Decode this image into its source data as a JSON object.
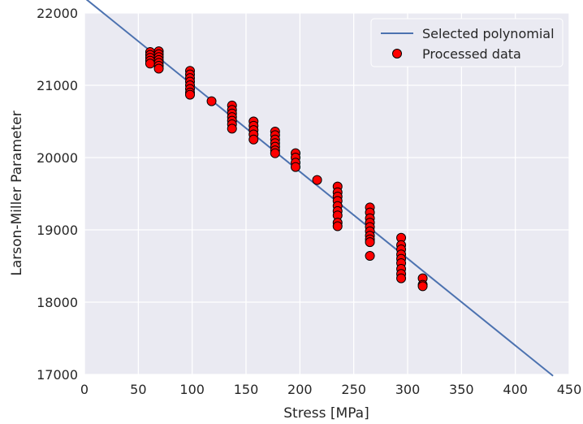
{
  "chart_data": {
    "type": "scatter",
    "title": "",
    "xlabel": "Stress [MPa]",
    "ylabel": "Larson-Miller Parameter",
    "xlim": [
      0,
      450
    ],
    "ylim": [
      17000,
      22000
    ],
    "xticks": [
      "0",
      "50",
      "100",
      "150",
      "200",
      "250",
      "300",
      "350",
      "400",
      "450"
    ],
    "yticks": [
      "17000",
      "18000",
      "19000",
      "20000",
      "21000",
      "22000"
    ],
    "grid": true,
    "legend": "top-right",
    "colors": {
      "background": "#eaeaf2",
      "grid": "#ffffff",
      "line": "#4c72b0",
      "marker_fill": "#ff0000",
      "marker_edge": "#000000"
    },
    "series": [
      {
        "name": "Selected polynomial",
        "kind": "line",
        "x": [
          0,
          435
        ],
        "y": [
          22210,
          16980
        ]
      },
      {
        "name": "Processed data",
        "kind": "scatter",
        "points": [
          [
            61,
            21460
          ],
          [
            61,
            21420
          ],
          [
            61,
            21380
          ],
          [
            61,
            21340
          ],
          [
            61,
            21300
          ],
          [
            69,
            21470
          ],
          [
            69,
            21430
          ],
          [
            69,
            21390
          ],
          [
            69,
            21350
          ],
          [
            69,
            21310
          ],
          [
            69,
            21270
          ],
          [
            69,
            21230
          ],
          [
            98,
            21200
          ],
          [
            98,
            21150
          ],
          [
            98,
            21100
          ],
          [
            98,
            21050
          ],
          [
            98,
            21000
          ],
          [
            98,
            20950
          ],
          [
            98,
            20900
          ],
          [
            98,
            20870
          ],
          [
            118,
            20780
          ],
          [
            137,
            20720
          ],
          [
            137,
            20660
          ],
          [
            137,
            20610
          ],
          [
            137,
            20560
          ],
          [
            137,
            20510
          ],
          [
            137,
            20460
          ],
          [
            137,
            20400
          ],
          [
            157,
            20500
          ],
          [
            157,
            20440
          ],
          [
            157,
            20380
          ],
          [
            157,
            20320
          ],
          [
            157,
            20250
          ],
          [
            177,
            20360
          ],
          [
            177,
            20310
          ],
          [
            177,
            20250
          ],
          [
            177,
            20200
          ],
          [
            177,
            20150
          ],
          [
            177,
            20100
          ],
          [
            177,
            20060
          ],
          [
            196,
            20060
          ],
          [
            196,
            20000
          ],
          [
            196,
            19930
          ],
          [
            196,
            19870
          ],
          [
            216,
            19690
          ],
          [
            235,
            19600
          ],
          [
            235,
            19520
          ],
          [
            235,
            19460
          ],
          [
            235,
            19400
          ],
          [
            235,
            19330
          ],
          [
            235,
            19260
          ],
          [
            235,
            19200
          ],
          [
            235,
            19100
          ],
          [
            235,
            19050
          ],
          [
            265,
            19310
          ],
          [
            265,
            19240
          ],
          [
            265,
            19160
          ],
          [
            265,
            19100
          ],
          [
            265,
            19040
          ],
          [
            265,
            18980
          ],
          [
            265,
            18920
          ],
          [
            265,
            18870
          ],
          [
            265,
            18830
          ],
          [
            265,
            18640
          ],
          [
            294,
            18890
          ],
          [
            294,
            18790
          ],
          [
            294,
            18730
          ],
          [
            294,
            18660
          ],
          [
            294,
            18600
          ],
          [
            294,
            18540
          ],
          [
            294,
            18460
          ],
          [
            294,
            18390
          ],
          [
            294,
            18330
          ],
          [
            314,
            18330
          ],
          [
            314,
            18240
          ],
          [
            314,
            18220
          ]
        ]
      }
    ]
  }
}
